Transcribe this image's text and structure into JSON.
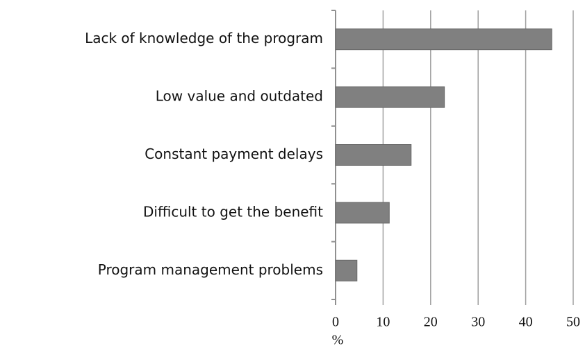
{
  "chart_data": {
    "type": "bar",
    "orientation": "horizontal",
    "categories": [
      "Lack of knowledge of the program",
      "Low value and outdated",
      "Constant payment delays",
      "Difficult to get the benefit",
      "Program management problems"
    ],
    "values": [
      45.5,
      22.9,
      15.9,
      11.3,
      4.5
    ],
    "color": "#808080",
    "xlim": [
      0,
      50
    ],
    "xticks": [
      0,
      10,
      20,
      30,
      40,
      50
    ],
    "x_label": "%",
    "grid": true
  }
}
